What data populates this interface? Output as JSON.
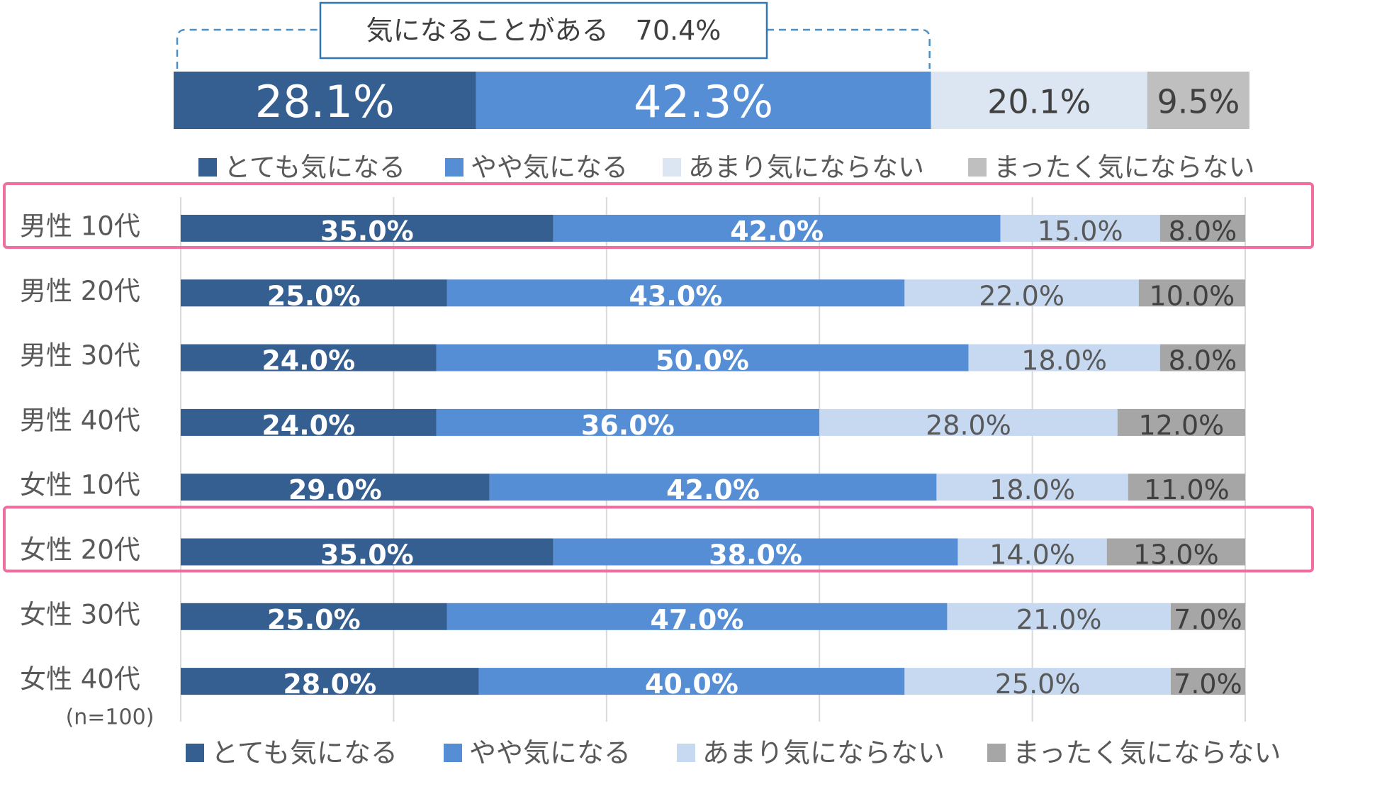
{
  "chart_data": [
    {
      "type": "bar",
      "orientation": "horizontal",
      "stacked": true,
      "series": [
        {
          "name": "とても気になる",
          "values": [
            28.1
          ]
        },
        {
          "name": "やや気になる",
          "values": [
            42.3
          ]
        },
        {
          "name": "あまり気にならない",
          "values": [
            20.1
          ]
        },
        {
          "name": "まったく気にならない",
          "values": [
            9.5
          ]
        }
      ],
      "value_labels": [
        "28.1%",
        "42.3%",
        "20.1%",
        "9.5%"
      ],
      "summary_label": "気になることがある　70.4%",
      "legend": [
        "とても気になる",
        "やや気になる",
        "あまり気にならない",
        "まったく気にならない"
      ],
      "legend_position": "bottom",
      "colors": [
        "#355e91",
        "#558ed5",
        "#dce6f2",
        "#bfbfbf"
      ]
    },
    {
      "type": "bar",
      "orientation": "horizontal",
      "stacked": true,
      "categories": [
        "男性 10代",
        "男性 20代",
        "男性 30代",
        "男性 40代",
        "女性 10代",
        "女性 20代",
        "女性 30代",
        "女性 40代"
      ],
      "series": [
        {
          "name": "とても気になる",
          "values": [
            35,
            25,
            24,
            24,
            29,
            35,
            25,
            28
          ]
        },
        {
          "name": "やや気になる",
          "values": [
            42,
            43,
            50,
            36,
            42,
            38,
            47,
            40
          ]
        },
        {
          "name": "あまり気にならない",
          "values": [
            15,
            22,
            18,
            28,
            18,
            14,
            21,
            25
          ]
        },
        {
          "name": "まったく気にならない",
          "values": [
            8,
            10,
            8,
            12,
            11,
            13,
            7,
            7
          ]
        }
      ],
      "value_labels": [
        [
          "35.0%",
          "42.0%",
          "15.0%",
          "8.0%"
        ],
        [
          "25.0%",
          "43.0%",
          "22.0%",
          "10.0%"
        ],
        [
          "24.0%",
          "50.0%",
          "18.0%",
          "8.0%"
        ],
        [
          "24.0%",
          "36.0%",
          "28.0%",
          "12.0%"
        ],
        [
          "29.0%",
          "42.0%",
          "18.0%",
          "11.0%"
        ],
        [
          "35.0%",
          "38.0%",
          "14.0%",
          "13.0%"
        ],
        [
          "25.0%",
          "47.0%",
          "21.0%",
          "7.0%"
        ],
        [
          "28.0%",
          "40.0%",
          "25.0%",
          "7.0%"
        ]
      ],
      "xlim": [
        0,
        100
      ],
      "grid": true,
      "highlighted_categories": [
        "男性 10代",
        "女性 20代"
      ],
      "highlight_color": "#f06ea0",
      "sample_note": "(n=100)",
      "legend": [
        "とても気になる",
        "やや気になる",
        "あまり気にならない",
        "まったく気にならない"
      ],
      "legend_position": "bottom",
      "colors": [
        "#355e91",
        "#558ed5",
        "#c6d9f1",
        "#a6a6a6"
      ]
    }
  ]
}
